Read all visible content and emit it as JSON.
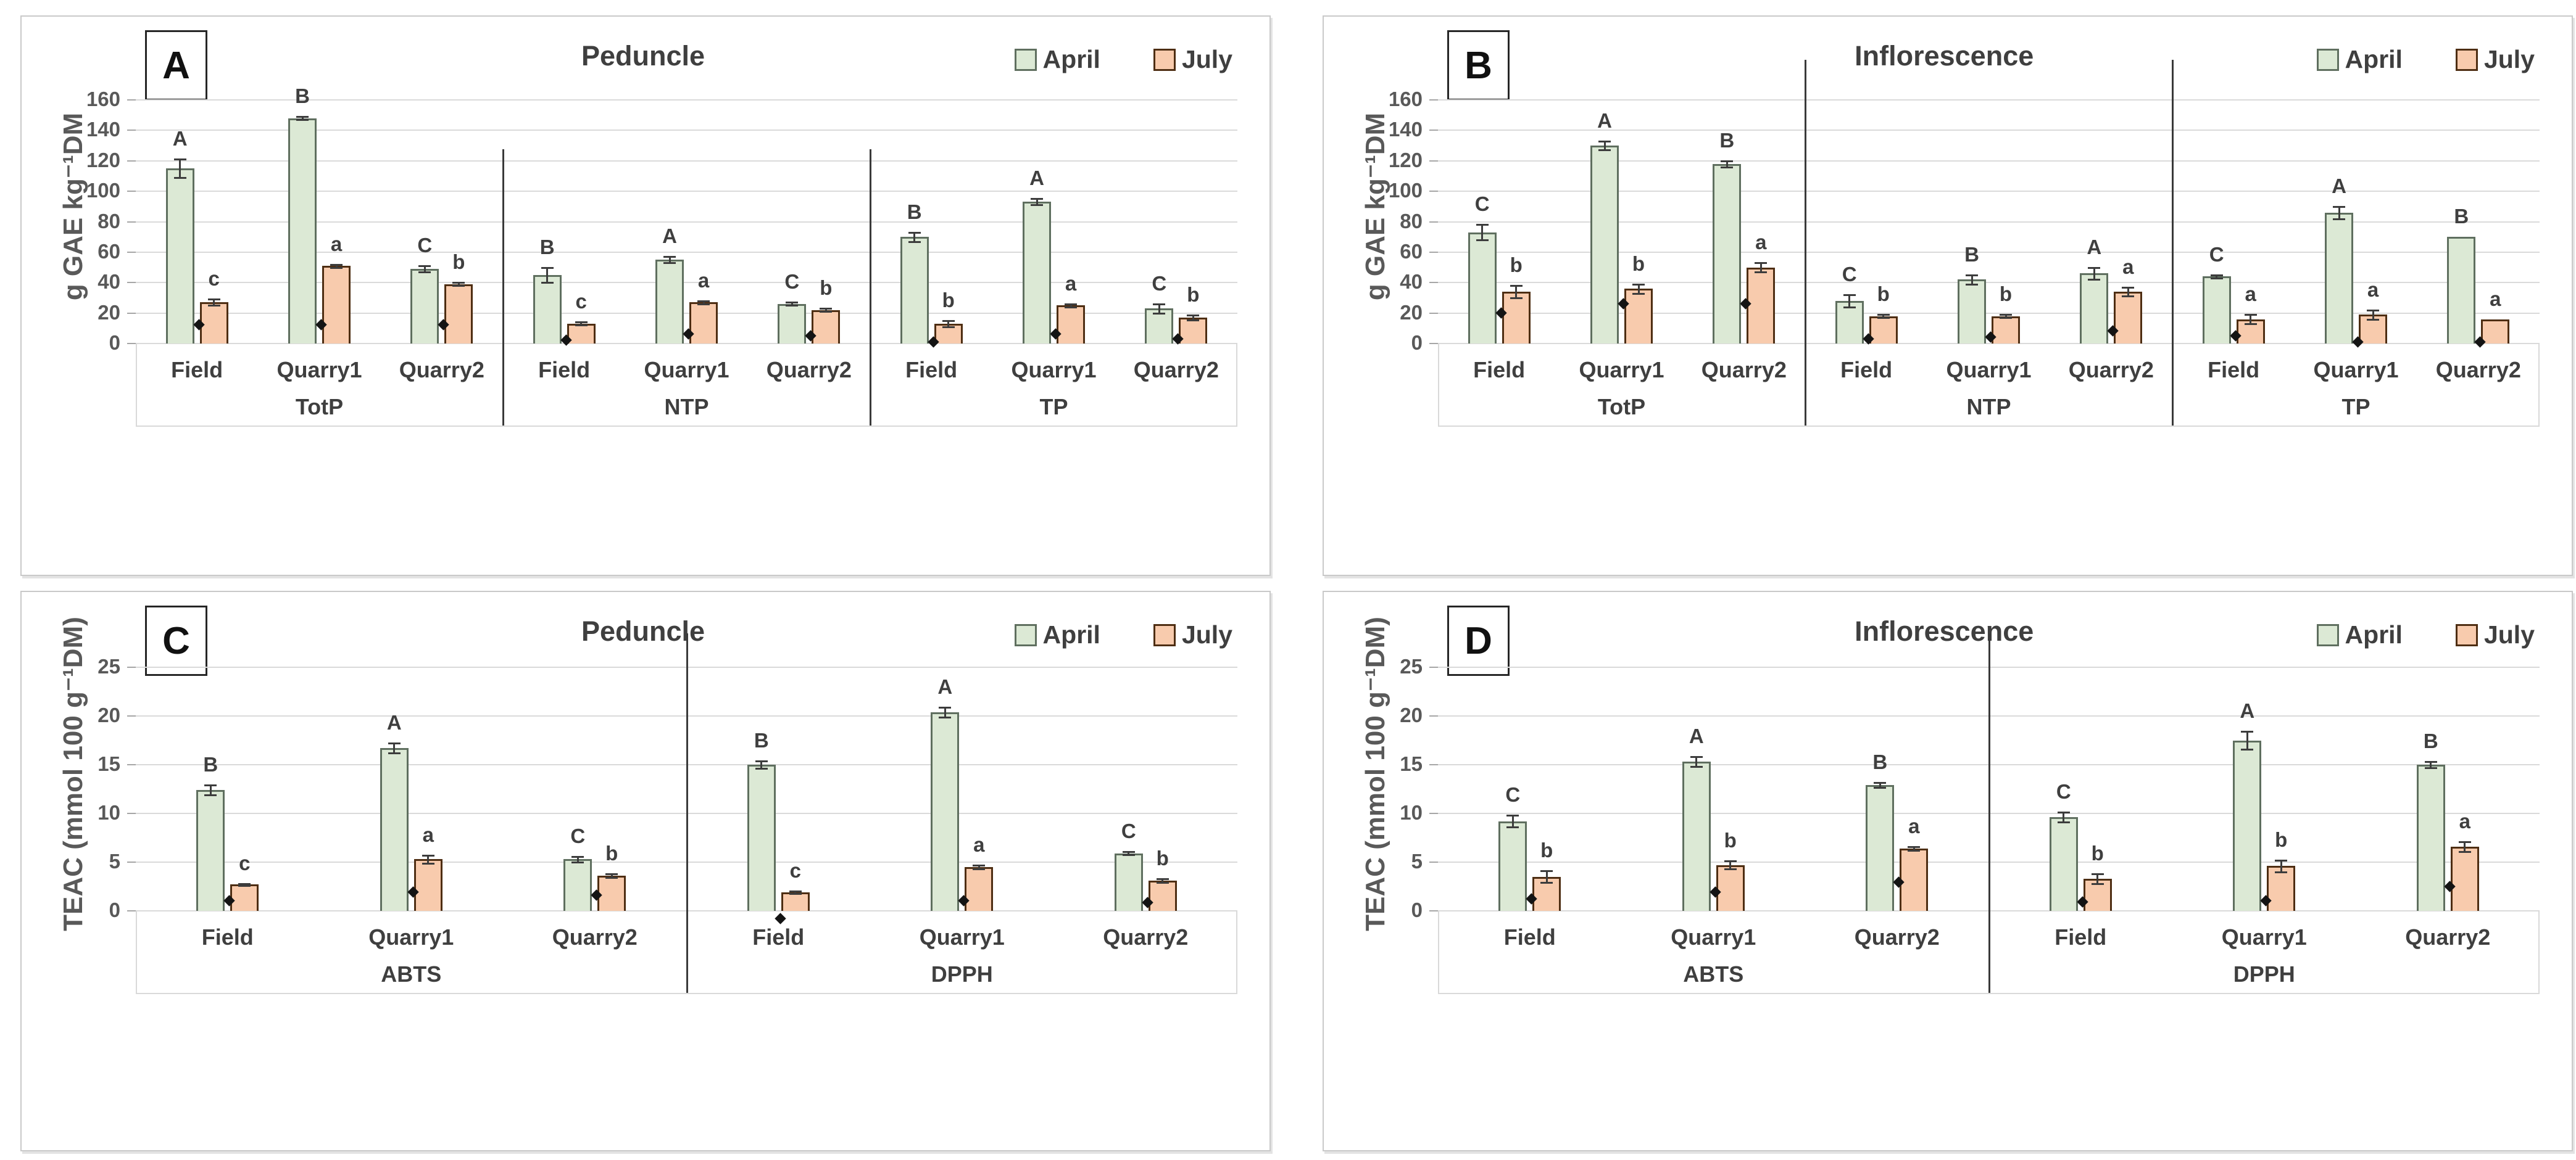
{
  "figure": {
    "description": "Four-panel grouped bar figure comparing April vs July",
    "panel_letters": [
      "A",
      "B",
      "C",
      "D"
    ]
  },
  "colors": {
    "april_fill": "#dce9d5",
    "april_stroke": "#5f6f5f",
    "july_fill": "#f8cbad",
    "july_stroke": "#4e2e13",
    "grid": "#dadada",
    "axis_text": "#595959",
    "label_text": "#3f3f3f",
    "separator": "#3a3a3a",
    "marker": "#141414"
  },
  "legend": {
    "items": [
      {
        "label": "April"
      },
      {
        "label": "July"
      }
    ],
    "position": "top-right"
  },
  "chart_data": [
    {
      "panel": "A",
      "type": "bar",
      "title": "Peduncle",
      "ylabel": "g GAE kg⁻¹DM",
      "ylim": [
        0,
        160
      ],
      "ytick_step": 20,
      "grid": true,
      "series_names": [
        "April",
        "July"
      ],
      "sep_top": 215,
      "groups": [
        {
          "label": "TotP",
          "sites": [
            {
              "label": "Field",
              "april": {
                "value": 115,
                "err": 6,
                "letter": "A"
              },
              "july": {
                "value": 27,
                "err": 2,
                "letter": "c"
              },
              "marker_y": 12
            },
            {
              "label": "Quarry1",
              "april": {
                "value": 148,
                "err": 1,
                "letter": "B"
              },
              "july": {
                "value": 51,
                "err": 1,
                "letter": "a"
              },
              "marker_y": 12
            },
            {
              "label": "Quarry2",
              "april": {
                "value": 49,
                "err": 2,
                "letter": "C"
              },
              "july": {
                "value": 39,
                "err": 1,
                "letter": "b"
              },
              "marker_y": 12
            }
          ]
        },
        {
          "label": "NTP",
          "sites": [
            {
              "label": "Field",
              "april": {
                "value": 45,
                "err": 5,
                "letter": "B"
              },
              "july": {
                "value": 13,
                "err": 1,
                "letter": "c"
              },
              "marker_y": 2
            },
            {
              "label": "Quarry1",
              "april": {
                "value": 55,
                "err": 2,
                "letter": "A"
              },
              "july": {
                "value": 27,
                "err": 1,
                "letter": "a"
              },
              "marker_y": 6
            },
            {
              "label": "Quarry2",
              "april": {
                "value": 26,
                "err": 1,
                "letter": "C"
              },
              "july": {
                "value": 22,
                "err": 1,
                "letter": "b"
              },
              "marker_y": 5
            }
          ]
        },
        {
          "label": "TP",
          "sites": [
            {
              "label": "Field",
              "april": {
                "value": 70,
                "err": 3,
                "letter": "B"
              },
              "july": {
                "value": 13,
                "err": 2,
                "letter": "b"
              },
              "marker_y": 1
            },
            {
              "label": "Quarry1",
              "april": {
                "value": 93,
                "err": 2,
                "letter": "A"
              },
              "july": {
                "value": 25,
                "err": 1,
                "letter": "a"
              },
              "marker_y": 6
            },
            {
              "label": "Quarry2",
              "april": {
                "value": 23,
                "err": 3,
                "letter": "C"
              },
              "july": {
                "value": 17,
                "err": 1.5,
                "letter": "b"
              },
              "marker_y": 3
            }
          ]
        }
      ]
    },
    {
      "panel": "B",
      "type": "bar",
      "title": "Inflorescence",
      "ylabel": "g GAE kg⁻¹DM",
      "ylim": [
        0,
        160
      ],
      "ytick_step": 20,
      "grid": true,
      "series_names": [
        "April",
        "July"
      ],
      "sep_top": 70,
      "groups": [
        {
          "label": "TotP",
          "sites": [
            {
              "label": "Field",
              "april": {
                "value": 73,
                "err": 5,
                "letter": "C"
              },
              "july": {
                "value": 34,
                "err": 4,
                "letter": "b"
              },
              "marker_y": 20
            },
            {
              "label": "Quarry1",
              "april": {
                "value": 130,
                "err": 3,
                "letter": "A"
              },
              "july": {
                "value": 36,
                "err": 3,
                "letter": "b"
              },
              "marker_y": 26
            },
            {
              "label": "Quarry2",
              "april": {
                "value": 118,
                "err": 2,
                "letter": "B"
              },
              "july": {
                "value": 50,
                "err": 3,
                "letter": "a"
              },
              "marker_y": 26
            }
          ]
        },
        {
          "label": "NTP",
          "sites": [
            {
              "label": "Field",
              "april": {
                "value": 28,
                "err": 4,
                "letter": "C"
              },
              "july": {
                "value": 18,
                "err": 1,
                "letter": "b"
              },
              "marker_y": 3
            },
            {
              "label": "Quarry1",
              "april": {
                "value": 42,
                "err": 3,
                "letter": "B"
              },
              "july": {
                "value": 18,
                "err": 1,
                "letter": "b"
              },
              "marker_y": 4
            },
            {
              "label": "Quarry2",
              "april": {
                "value": 46,
                "err": 4,
                "letter": "A"
              },
              "july": {
                "value": 34,
                "err": 3,
                "letter": "a"
              },
              "marker_y": 8
            }
          ]
        },
        {
          "label": "TP",
          "sites": [
            {
              "label": "Field",
              "april": {
                "value": 44,
                "err": 1,
                "letter": "C"
              },
              "july": {
                "value": 16,
                "err": 3,
                "letter": "a"
              },
              "marker_y": 5
            },
            {
              "label": "Quarry1",
              "april": {
                "value": 86,
                "err": 4,
                "letter": "A"
              },
              "july": {
                "value": 19,
                "err": 3,
                "letter": "a"
              },
              "marker_y": 1
            },
            {
              "label": "Quarry2",
              "april": {
                "value": 70,
                "err": 0,
                "letter": "B"
              },
              "july": {
                "value": 16,
                "err": 0,
                "letter": "a"
              },
              "marker_y": 1
            }
          ]
        }
      ]
    },
    {
      "panel": "C",
      "type": "bar",
      "title": "Peduncle",
      "ylabel": "TEAC (mmol 100 g⁻¹DM)",
      "ylim": [
        0,
        25
      ],
      "ytick_step": 5,
      "grid": true,
      "series_names": [
        "April",
        "July"
      ],
      "sep_top": 67,
      "groups": [
        {
          "label": "ABTS",
          "sites": [
            {
              "label": "Field",
              "april": {
                "value": 12.4,
                "err": 0.5,
                "letter": "B"
              },
              "july": {
                "value": 2.7,
                "err": 0.1,
                "letter": "c"
              },
              "marker_y": 1.0
            },
            {
              "label": "Quarry1",
              "april": {
                "value": 16.7,
                "err": 0.5,
                "letter": "A"
              },
              "july": {
                "value": 5.3,
                "err": 0.4,
                "letter": "a"
              },
              "marker_y": 1.9
            },
            {
              "label": "Quarry2",
              "april": {
                "value": 5.3,
                "err": 0.3,
                "letter": "C"
              },
              "july": {
                "value": 3.6,
                "err": 0.2,
                "letter": "b"
              },
              "marker_y": 1.6
            }
          ]
        },
        {
          "label": "DPPH",
          "sites": [
            {
              "label": "Field",
              "april": {
                "value": 15.0,
                "err": 0.4,
                "letter": "B"
              },
              "july": {
                "value": 1.9,
                "err": 0.1,
                "letter": "c"
              },
              "marker_y": -0.8
            },
            {
              "label": "Quarry1",
              "april": {
                "value": 20.4,
                "err": 0.5,
                "letter": "A"
              },
              "july": {
                "value": 4.5,
                "err": 0.2,
                "letter": "a"
              },
              "marker_y": 1.0
            },
            {
              "label": "Quarry2",
              "april": {
                "value": 5.9,
                "err": 0.15,
                "letter": "C"
              },
              "july": {
                "value": 3.1,
                "err": 0.2,
                "letter": "b"
              },
              "marker_y": 0.8
            }
          ]
        }
      ]
    },
    {
      "panel": "D",
      "type": "bar",
      "title": "Inflorescence",
      "ylabel": "TEAC (mmol 100 g⁻¹DM)",
      "ylim": [
        0,
        25
      ],
      "ytick_step": 5,
      "grid": true,
      "series_names": [
        "April",
        "July"
      ],
      "sep_top": 67,
      "groups": [
        {
          "label": "ABTS",
          "sites": [
            {
              "label": "Field",
              "april": {
                "value": 9.2,
                "err": 0.6,
                "letter": "C"
              },
              "july": {
                "value": 3.5,
                "err": 0.6,
                "letter": "b"
              },
              "marker_y": 1.2
            },
            {
              "label": "Quarry1",
              "april": {
                "value": 15.3,
                "err": 0.5,
                "letter": "A"
              },
              "july": {
                "value": 4.7,
                "err": 0.4,
                "letter": "b"
              },
              "marker_y": 1.9
            },
            {
              "label": "Quarry2",
              "april": {
                "value": 12.9,
                "err": 0.25,
                "letter": "B"
              },
              "july": {
                "value": 6.4,
                "err": 0.2,
                "letter": "a"
              },
              "marker_y": 2.9
            }
          ]
        },
        {
          "label": "DPPH",
          "sites": [
            {
              "label": "Field",
              "april": {
                "value": 9.6,
                "err": 0.5,
                "letter": "C"
              },
              "july": {
                "value": 3.3,
                "err": 0.5,
                "letter": "b"
              },
              "marker_y": 0.9
            },
            {
              "label": "Quarry1",
              "april": {
                "value": 17.5,
                "err": 0.9,
                "letter": "A"
              },
              "july": {
                "value": 4.6,
                "err": 0.6,
                "letter": "b"
              },
              "marker_y": 1.0
            },
            {
              "label": "Quarry2",
              "april": {
                "value": 15.0,
                "err": 0.3,
                "letter": "B"
              },
              "july": {
                "value": 6.6,
                "err": 0.5,
                "letter": "a"
              },
              "marker_y": 2.5
            }
          ]
        }
      ]
    }
  ]
}
